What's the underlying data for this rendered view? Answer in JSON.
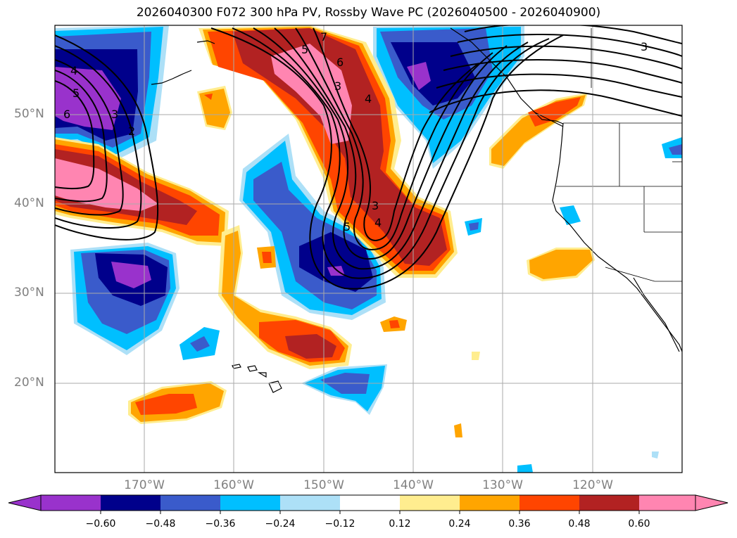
{
  "title": "2026040300 F072 300 hPa PV, Rossby Wave PC (2026040500 - 2026040900)",
  "latitude_labels": [
    "50°N",
    "40°N",
    "30°N",
    "20°N"
  ],
  "longitude_labels": [
    "170°W",
    "160°W",
    "150°W",
    "140°W",
    "130°W",
    "120°W"
  ],
  "colorbar": {
    "tick_labels": [
      "−0.60",
      "−0.48",
      "−0.36",
      "−0.24",
      "−0.12",
      "0.12",
      "0.24",
      "0.36",
      "0.48",
      "0.60"
    ],
    "colors": [
      "#9932CC",
      "#00008B",
      "#3A5BCB",
      "#00BFFF",
      "#ADE0F7",
      "#FFFFFF",
      "#FFED8F",
      "#FFA500",
      "#FF4500",
      "#B22222",
      "#FF85B1"
    ]
  },
  "contour_labels": [
    "4",
    "5",
    "6",
    "3",
    "2",
    "5",
    "6",
    "7",
    "3",
    "4",
    "3",
    "4",
    "5",
    "3"
  ],
  "colors": {
    "purple": "#9932CC",
    "navy": "#00008B",
    "royal": "#3A5BCB",
    "sky": "#00BFFF",
    "pale_blue": "#ADE0F7",
    "pale_yellow": "#FFED8F",
    "orange": "#FFA500",
    "red_orange": "#FF4500",
    "firebrick": "#B22222",
    "pink": "#FF85B1"
  }
}
